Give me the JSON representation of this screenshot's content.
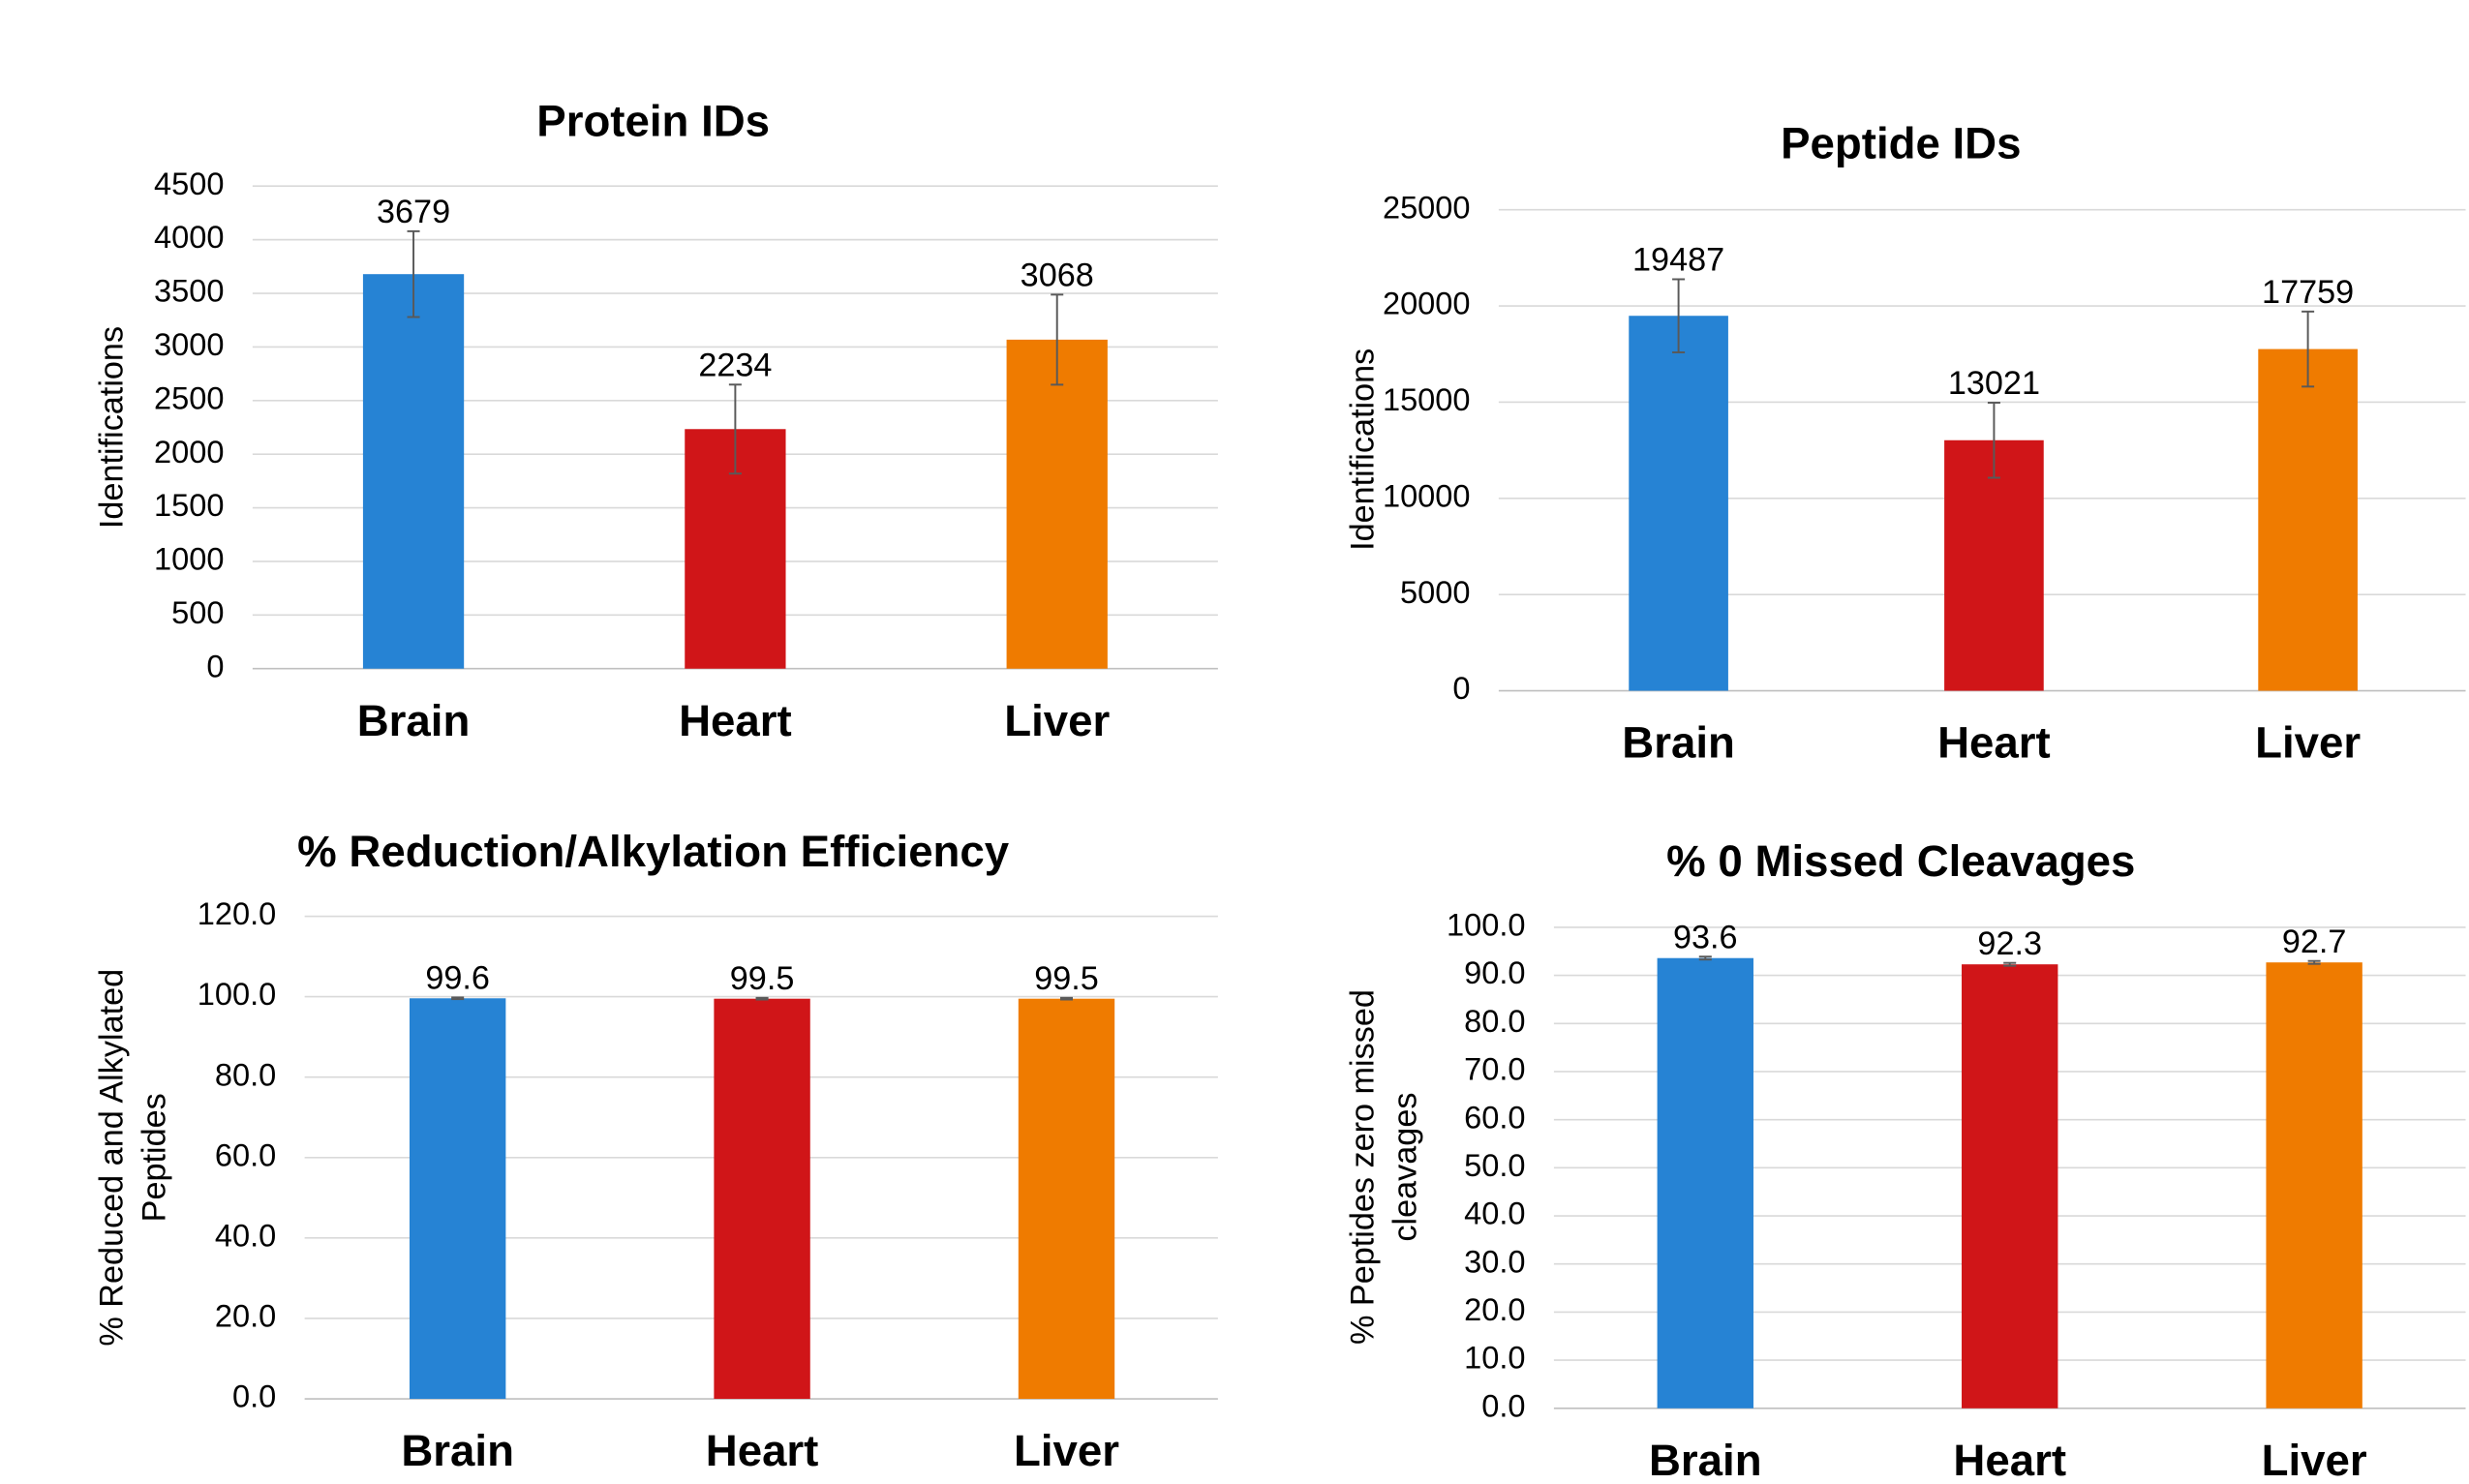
{
  "chart_data": [
    {
      "type": "bar",
      "title": "Protein IDs",
      "ylabel": [
        "Identifications"
      ],
      "categories": [
        "Brain",
        "Heart",
        "Liver"
      ],
      "values": [
        3679,
        2234,
        3068
      ],
      "errors": [
        400,
        415,
        420
      ],
      "colors": [
        "#2683d4",
        "#d01518",
        "#ef7b00"
      ],
      "ylim": [
        0,
        4500
      ],
      "yticks": [
        0,
        500,
        1000,
        1500,
        2000,
        2500,
        3000,
        3500,
        4000,
        4500
      ],
      "grid": true
    },
    {
      "type": "bar",
      "title": "Peptide IDs",
      "ylabel": [
        "Identifications"
      ],
      "categories": [
        "Brain",
        "Heart",
        "Liver"
      ],
      "values": [
        19487,
        13021,
        17759
      ],
      "errors": [
        1900,
        1950,
        1950
      ],
      "colors": [
        "#2683d4",
        "#d01518",
        "#ef7b00"
      ],
      "ylim": [
        0,
        25000
      ],
      "yticks": [
        0,
        5000,
        10000,
        15000,
        20000,
        25000
      ],
      "grid": true
    },
    {
      "type": "bar",
      "title": "% Reduction/Alkylation Efficiency",
      "ylabel": [
        "% Reduced and Alkylated",
        "Peptides"
      ],
      "categories": [
        "Brain",
        "Heart",
        "Liver"
      ],
      "values": [
        99.6,
        99.5,
        99.5
      ],
      "errors": [
        0.2,
        0.2,
        0.2
      ],
      "colors": [
        "#2683d4",
        "#d01518",
        "#ef7b00"
      ],
      "ylim": [
        0,
        120
      ],
      "yticks": [
        {
          "value": 0,
          "label": "0.0"
        },
        {
          "value": 20,
          "label": "20.0"
        },
        {
          "value": 40,
          "label": "40.0"
        },
        {
          "value": 60,
          "label": "60.0"
        },
        {
          "value": 80,
          "label": "80.0"
        },
        {
          "value": 100,
          "label": "100.0"
        },
        {
          "value": 120,
          "label": "120.0"
        }
      ],
      "grid": true
    },
    {
      "type": "bar",
      "title": "% 0 Missed Cleavages",
      "ylabel": [
        "% Peptides zero missed",
        "cleavages"
      ],
      "categories": [
        "Brain",
        "Heart",
        "Liver"
      ],
      "values": [
        93.6,
        92.3,
        92.7
      ],
      "errors": [
        0.3,
        0.3,
        0.3
      ],
      "colors": [
        "#2683d4",
        "#d01518",
        "#ef7b00"
      ],
      "ylim": [
        0,
        100
      ],
      "yticks": [
        {
          "value": 0,
          "label": "0.0"
        },
        {
          "value": 10,
          "label": "10.0"
        },
        {
          "value": 20,
          "label": "20.0"
        },
        {
          "value": 30,
          "label": "30.0"
        },
        {
          "value": 40,
          "label": "40.0"
        },
        {
          "value": 50,
          "label": "50.0"
        },
        {
          "value": 60,
          "label": "60.0"
        },
        {
          "value": 70,
          "label": "70.0"
        },
        {
          "value": 80,
          "label": "80.0"
        },
        {
          "value": 90,
          "label": "90.0"
        },
        {
          "value": 100,
          "label": "100.0"
        }
      ],
      "grid": true
    }
  ]
}
